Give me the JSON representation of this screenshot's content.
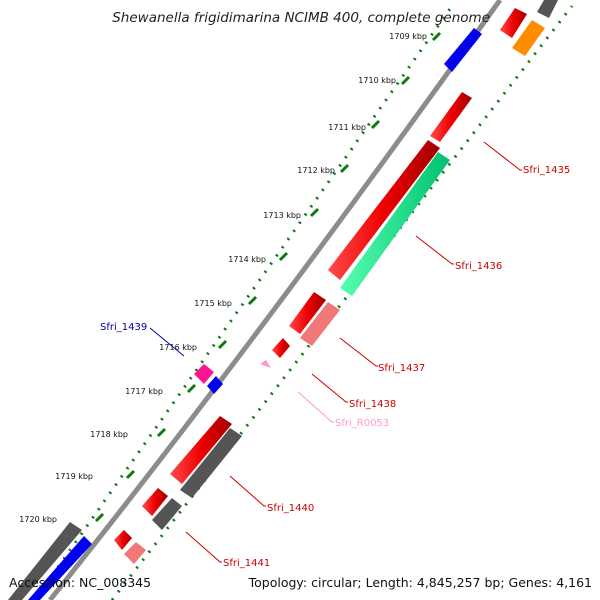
{
  "title": "Shewanella frigidimarina NCIMB 400, complete genome",
  "accession": "Accession: NC_008345",
  "summary": "Topology: circular; Length: 4,845,257 bp; Genes: 4,161",
  "ticks": [
    "1709 kbp",
    "1710 kbp",
    "1711 kbp",
    "1712 kbp",
    "1713 kbp",
    "1714 kbp",
    "1715 kbp",
    "1716 kbp",
    "1717 kbp",
    "1718 kbp",
    "1719 kbp",
    "1720 kbp"
  ],
  "labels": {
    "sfri_1435": "Sfri_1435",
    "sfri_1436": "Sfri_1436",
    "sfri_1437": "Sfri_1437",
    "sfri_1438": "Sfri_1438",
    "sfri_r0053": "Sfri_R0053",
    "sfri_1439": "Sfri_1439",
    "sfri_1440": "Sfri_1440",
    "sfri_1441": "Sfri_1441"
  },
  "colors": {
    "backbone": "#8c8c8c",
    "cds_red": "#ee0000",
    "cds_blue": "#0000ee",
    "cds_grey": "#555555",
    "cds_orange": "#ff8c00",
    "cds_green": "#00ee88",
    "cds_pink": "#f07878",
    "cds_magenta": "#ff1493",
    "rrna_pink": "#ff99cc",
    "tick_green": "#117711",
    "label_red": "#cc0000",
    "label_blue": "#000099"
  }
}
